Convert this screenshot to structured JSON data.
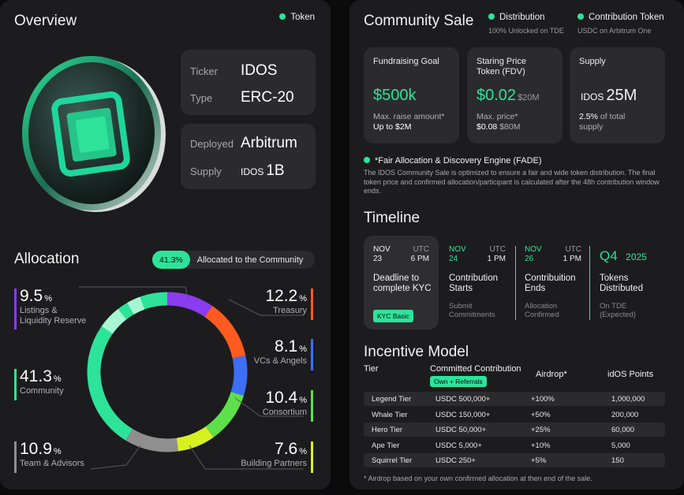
{
  "overview": {
    "title": "Overview",
    "tag": "Token",
    "ticker_key": "Ticker",
    "ticker_val": "IDOS",
    "type_key": "Type",
    "type_val": "ERC-20",
    "deployed_key": "Deployed",
    "deployed_val": "Arbitrum",
    "supply_key": "Supply",
    "supply_unit": "IDOS",
    "supply_val": "1B"
  },
  "allocation": {
    "title": "Allocation",
    "badge_pct": "41.3%",
    "badge_text": "Allocated to the Community",
    "items": [
      {
        "value": "9.5",
        "unit": "%",
        "label": "Listings &",
        "label2": "Liquidity Reserve",
        "color": "#8a3cf0",
        "pct": 9.5
      },
      {
        "value": "12.2",
        "unit": "%",
        "label": "Treasury",
        "color": "#ff5a1f",
        "pct": 12.2
      },
      {
        "value": "8.1",
        "unit": "%",
        "label": "VCs & Angels",
        "color": "#3d6ff5",
        "pct": 8.1
      },
      {
        "value": "10.4",
        "unit": "%",
        "label": "Consortium",
        "color": "#5ee04a",
        "pct": 10.4
      },
      {
        "value": "7.6",
        "unit": "%",
        "label": "Building Partners",
        "color": "#d7f021",
        "pct": 7.6
      },
      {
        "value": "10.9",
        "unit": "%",
        "label": "Team & Advisors",
        "color": "#8f8f8f",
        "pct": 10.9
      },
      {
        "value": "41.3",
        "unit": "%",
        "label": "Community",
        "color": "#2de39a",
        "pct": 41.3
      }
    ]
  },
  "sale": {
    "title": "Community Sale",
    "tag1": "Distribution",
    "tag1_sub": "100% Unlocked on TDE",
    "tag2": "Contribution Token",
    "tag2_sub": "USDC on Arbitrum One",
    "cards": [
      {
        "h1": "Fundraising Goal",
        "h2": "",
        "value": "$500k",
        "value_small": "",
        "n1": "Max. raise amount*",
        "n2": "Up to $2M"
      },
      {
        "h1": "Staring Price",
        "h2": "Token (FDV)",
        "value": "$0.02",
        "value_small": "$20M",
        "n1": "Max. price*",
        "n2a": "$0.08",
        "n2b": "$80M"
      },
      {
        "h1": "Supply",
        "h2": "",
        "unit": "IDOS",
        "value": "25M",
        "n1a": "2.5%",
        "n1b": "of total",
        "n2": "supply"
      }
    ],
    "fade_title": "*Fair Allocation & Discovery Engine (FADE)",
    "fade_text": "The IDOS Community Sale is optimized to ensure a fair and wide token distribution. The final token price and confirmed allocation/participant is calculated after the 48h contribution window ends."
  },
  "timeline": {
    "title": "Timeline",
    "items": [
      {
        "month": "NOV",
        "day": "23",
        "tz": "UTC",
        "time": "6 PM",
        "name1": "Deadline to",
        "name2": "complete KYC",
        "badge": "KYC Basic"
      },
      {
        "month": "NOV",
        "day": "24",
        "tz": "UTC",
        "time": "1 PM",
        "name1": "Contribution",
        "name2": "Starts",
        "note1": "Submit",
        "note2": "Commitments"
      },
      {
        "month": "NOV",
        "day": "26",
        "tz": "UTC",
        "time": "1 PM",
        "name1": "Contribuition",
        "name2": "Ends",
        "note1": "Allocation",
        "note2": "Confirmed"
      },
      {
        "quarter": "Q4",
        "year": "2025",
        "name1": "Tokens",
        "name2": "Distributed",
        "note1": "On TDE",
        "note2": "(Expected)"
      }
    ]
  },
  "incentive": {
    "title": "Incentive Model",
    "headers": {
      "tier": "Tier",
      "contribution": "Committed Contribution",
      "contribution_badge": "Own + Referrals",
      "airdrop": "Airdrop*",
      "points": "idOS Points"
    },
    "rows": [
      {
        "tier": "Legend Tier",
        "contribution": "USDC 500,000+",
        "airdrop": "+100%",
        "points": "1,000,000"
      },
      {
        "tier": "Whale Tier",
        "contribution": "USDC 150,000+",
        "airdrop": "+50%",
        "points": "200,000"
      },
      {
        "tier": "Hero Tier",
        "contribution": "USDC 50,000+",
        "airdrop": "+25%",
        "points": "60,000"
      },
      {
        "tier": "Ape Tier",
        "contribution": "USDC 5,000+",
        "airdrop": "+10%",
        "points": "5,000"
      },
      {
        "tier": "Squirrel Tier",
        "contribution": "USDC 250+",
        "airdrop": "+5%",
        "points": "150"
      }
    ],
    "footnote": "* Airdrop based on your own confirmed allocation at then end of the sale."
  }
}
